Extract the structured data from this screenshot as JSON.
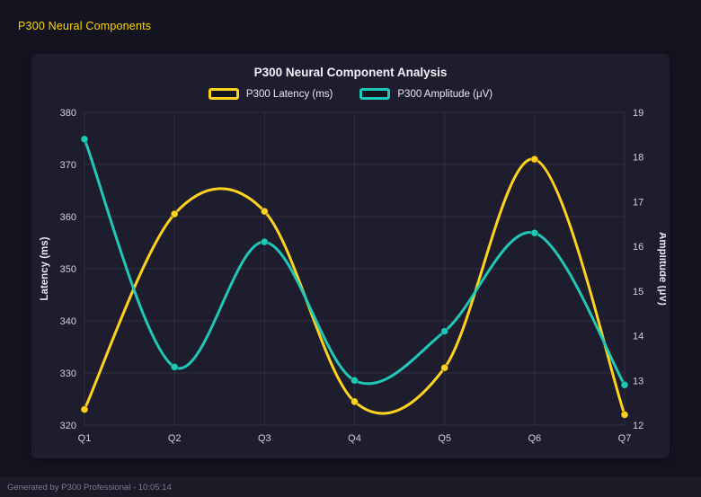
{
  "page": {
    "header_title": "P300 Neural Components",
    "footer_text": "Generated by P300 Professional - 10:05:14"
  },
  "chart_data": {
    "type": "line",
    "title": "P300 Neural Component Analysis",
    "categories": [
      "Q1",
      "Q2",
      "Q3",
      "Q4",
      "Q5",
      "Q6",
      "Q7"
    ],
    "series": [
      {
        "name": "P300 Latency (ms)",
        "axis": "left",
        "color": "#ffd21e",
        "values": [
          323,
          360.5,
          361,
          324.5,
          331,
          371,
          322
        ]
      },
      {
        "name": "P300 Amplitude (μV)",
        "axis": "right",
        "color": "#1fc8b8",
        "values": [
          18.4,
          13.3,
          16.1,
          13.0,
          14.1,
          16.3,
          12.9
        ]
      }
    ],
    "left_axis": {
      "label": "Latency (ms)",
      "min": 320,
      "max": 380,
      "step": 10
    },
    "right_axis": {
      "label": "Amplitude (μV)",
      "min": 12,
      "max": 19,
      "step": 1
    },
    "legend_position": "top",
    "grid": true,
    "line_style": "smooth",
    "background": "#1d1d2e",
    "text_color": "#cfcfdd"
  }
}
